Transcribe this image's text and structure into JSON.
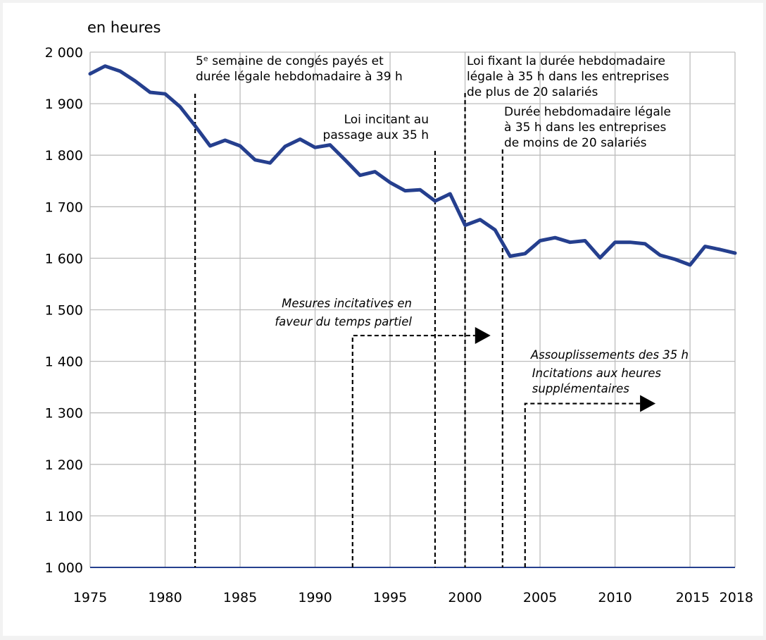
{
  "chart_data": {
    "type": "line",
    "title": "",
    "unit_label": "en heures",
    "xlabel": "",
    "ylabel": "",
    "xlim": [
      1975,
      2018
    ],
    "ylim": [
      1000,
      2000
    ],
    "grid": true,
    "y_ticks": [
      1000,
      1100,
      1200,
      1300,
      1400,
      1500,
      1600,
      1700,
      1800,
      1900,
      2000
    ],
    "y_tick_labels": [
      "1 000",
      "1 100",
      "1 200",
      "1 300",
      "1 400",
      "1 500",
      "1 600",
      "1 700",
      "1 800",
      "1 900",
      "2 000"
    ],
    "x_ticks": [
      1975,
      1980,
      1985,
      1990,
      1995,
      2000,
      2005,
      2010,
      2015,
      2018
    ],
    "x_tick_labels": [
      "1975",
      "1980",
      "1985",
      "1990",
      "1995",
      "2000",
      "2005",
      "2010",
      "2015",
      "2018"
    ],
    "line_color": "#253f8e",
    "series": [
      {
        "x": [
          1975,
          1976,
          1977,
          1978,
          1979,
          1980,
          1981,
          1982,
          1983,
          1984,
          1985,
          1986,
          1987,
          1988,
          1989,
          1990,
          1991,
          1992,
          1993,
          1994,
          1995,
          1996,
          1997,
          1998,
          1999,
          2000,
          2001,
          2002,
          2003,
          2004,
          2005,
          2006,
          2007,
          2008,
          2009,
          2010,
          2011,
          2012,
          2013,
          2014,
          2015,
          2016,
          2017,
          2018
        ],
        "values": [
          1958,
          1973,
          1963,
          1944,
          1922,
          1919,
          1894,
          1857,
          1818,
          1829,
          1818,
          1791,
          1785,
          1817,
          1831,
          1815,
          1820,
          1791,
          1761,
          1768,
          1747,
          1731,
          1733,
          1711,
          1725,
          1664,
          1675,
          1655,
          1604,
          1609,
          1634,
          1640,
          1631,
          1634,
          1601,
          1631,
          1631,
          1628,
          1606,
          1598,
          1587,
          1623,
          1617,
          1610
        ]
      }
    ],
    "events": [
      {
        "year": 1982,
        "lines": [
          "5ᵉ semaine de congés payés et",
          "durée légale hebdomadaire à 39 h"
        ]
      },
      {
        "year": 1998,
        "lines": [
          "Loi incitant au",
          "passage aux 35 h"
        ]
      },
      {
        "year": 2000,
        "lines": [
          "Loi fixant la durée hebdomadaire",
          "légale à 35 h dans les entreprises",
          "de plus de 20 salariés"
        ]
      },
      {
        "year": 2002.5,
        "lines": [
          "Durée hebdomadaire légale",
          "à 35 h dans les entreprises",
          "de moins de 20 salariés"
        ]
      }
    ],
    "periods": [
      {
        "start": 1992.5,
        "end": 2001.7,
        "level": 1450,
        "lines": [
          "Mesures incitatives en",
          "faveur du temps partiel"
        ]
      },
      {
        "start": 2004,
        "end": 2012.7,
        "level": 1318,
        "lines": [
          "Assouplissements des 35 h",
          "Incitations aux heures",
          "supplémentaires"
        ]
      }
    ]
  }
}
